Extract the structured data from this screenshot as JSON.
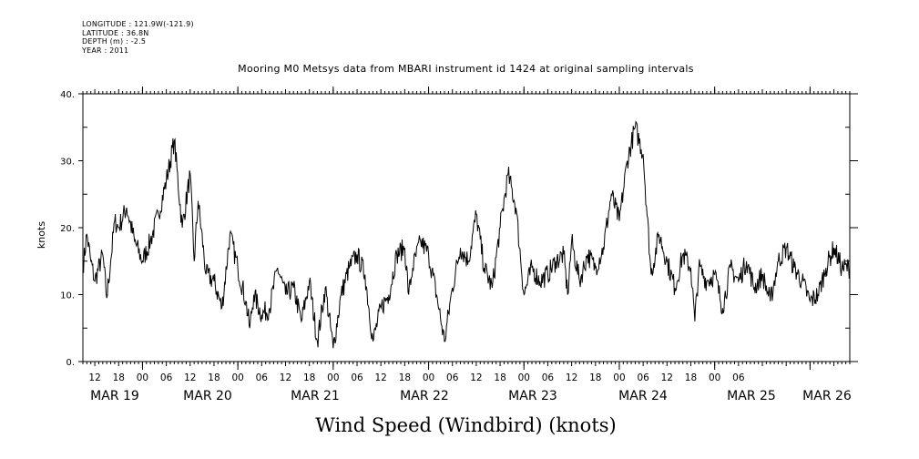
{
  "header": {
    "longitude": "LONGITUDE : 121.9W(-121.9)",
    "latitude": "LATITUDE : 36.8N",
    "depth": "DEPTH (m) : -2.5",
    "year": "YEAR : 2011"
  },
  "chart_data": {
    "type": "line",
    "title": "Mooring M0 Metsys data from MBARI instrument id 1424 at original sampling intervals",
    "xlabel": "Wind Speed (Windbird) (knots)",
    "ylabel": "knots",
    "ylim": [
      0,
      40
    ],
    "xlim": [
      "2011-03-18T09:00",
      "2011-03-26T10:00"
    ],
    "y_ticks": [
      "0.",
      "10.",
      "20.",
      "30.",
      "40."
    ],
    "hour_tick_labels": [
      "12",
      "18",
      "00",
      "06",
      "12",
      "18",
      "00",
      "06",
      "12",
      "18",
      "00",
      "06",
      "12",
      "18",
      "00",
      "06",
      "12",
      "18",
      "00",
      "06",
      "12",
      "18",
      "00",
      "06",
      "12",
      "18",
      "00",
      "06"
    ],
    "day_labels": [
      "MAR 19",
      "MAR 20",
      "MAR 21",
      "MAR 22",
      "MAR 23",
      "MAR 24",
      "MAR 25",
      "MAR 26"
    ],
    "series": [
      {
        "x": [
          "2011-03-18T09:00",
          "2011-03-18T10:00",
          "2011-03-18T11:00",
          "2011-03-18T12:00",
          "2011-03-18T14:00",
          "2011-03-18T15:00",
          "2011-03-18T16:00",
          "2011-03-18T17:00",
          "2011-03-18T18:00",
          "2011-03-18T20:00",
          "2011-03-18T22:00",
          "2011-03-19T00:00",
          "2011-03-19T02:00",
          "2011-03-19T04:00",
          "2011-03-19T06:00",
          "2011-03-19T08:00",
          "2011-03-19T10:00",
          "2011-03-19T12:00",
          "2011-03-19T13:00",
          "2011-03-19T14:00",
          "2011-03-19T16:00",
          "2011-03-19T18:00",
          "2011-03-19T20:00",
          "2011-03-19T22:00",
          "2011-03-20T00:00",
          "2011-03-20T02:00",
          "2011-03-20T03:00",
          "2011-03-20T04:00",
          "2011-03-20T06:00",
          "2011-03-20T08:00",
          "2011-03-20T10:00",
          "2011-03-20T12:00",
          "2011-03-20T14:00",
          "2011-03-20T16:00",
          "2011-03-20T18:00",
          "2011-03-20T20:00",
          "2011-03-20T22:00",
          "2011-03-21T00:00",
          "2011-03-21T02:00",
          "2011-03-21T04:00",
          "2011-03-21T06:00",
          "2011-03-21T08:00",
          "2011-03-21T10:00",
          "2011-03-21T12:00",
          "2011-03-21T14:00",
          "2011-03-21T16:00",
          "2011-03-21T18:00",
          "2011-03-21T19:00",
          "2011-03-21T20:00",
          "2011-03-21T22:00",
          "2011-03-22T00:00",
          "2011-03-22T02:00",
          "2011-03-22T04:00",
          "2011-03-22T06:00",
          "2011-03-22T08:00",
          "2011-03-22T10:00",
          "2011-03-22T12:00",
          "2011-03-22T14:00",
          "2011-03-22T16:00",
          "2011-03-22T18:00",
          "2011-03-22T20:00",
          "2011-03-22T22:00",
          "2011-03-23T00:00",
          "2011-03-23T02:00",
          "2011-03-23T04:00",
          "2011-03-23T06:00",
          "2011-03-23T08:00",
          "2011-03-23T10:00",
          "2011-03-23T11:00",
          "2011-03-23T12:00",
          "2011-03-23T14:00",
          "2011-03-23T16:00",
          "2011-03-23T18:00",
          "2011-03-23T20:00",
          "2011-03-23T22:00",
          "2011-03-24T00:00",
          "2011-03-24T02:00",
          "2011-03-24T04:00",
          "2011-03-24T06:00",
          "2011-03-24T08:00",
          "2011-03-24T10:00",
          "2011-03-24T12:00",
          "2011-03-24T14:00",
          "2011-03-24T16:00",
          "2011-03-24T18:00",
          "2011-03-24T19:00",
          "2011-03-24T20:00",
          "2011-03-24T22:00",
          "2011-03-25T00:00",
          "2011-03-25T02:00",
          "2011-03-25T04:00",
          "2011-03-25T06:00",
          "2011-03-25T08:00",
          "2011-03-25T10:00",
          "2011-03-25T12:00",
          "2011-03-25T14:00",
          "2011-03-25T16:00",
          "2011-03-25T18:00",
          "2011-03-25T20:00",
          "2011-03-25T22:00",
          "2011-03-26T00:00",
          "2011-03-26T02:00",
          "2011-03-26T04:00",
          "2011-03-26T06:00",
          "2011-03-26T08:00",
          "2011-03-26T10:00"
        ],
        "values": [
          14,
          19,
          15,
          12,
          16,
          9.5,
          15,
          21,
          20,
          23,
          18,
          15,
          18,
          22,
          27,
          33,
          20,
          28,
          15,
          24,
          13,
          12,
          8,
          19,
          14,
          9,
          5,
          10,
          7,
          8,
          14,
          10,
          11,
          6,
          12,
          3,
          11,
          2,
          10,
          14,
          16,
          13,
          3,
          8,
          10,
          16,
          17,
          10,
          14,
          18,
          16,
          10,
          3,
          11,
          17,
          15,
          22,
          14,
          11,
          20,
          28,
          23,
          10,
          14,
          12,
          13,
          15,
          16,
          10,
          18,
          12,
          16,
          14,
          17,
          25,
          21,
          30,
          35,
          31,
          13,
          19,
          15,
          11,
          16,
          14,
          6,
          14,
          12,
          13,
          8,
          14,
          12,
          15,
          11,
          13,
          9,
          15,
          17,
          14,
          12,
          9,
          10,
          14,
          17,
          14,
          14
        ]
      }
    ]
  }
}
